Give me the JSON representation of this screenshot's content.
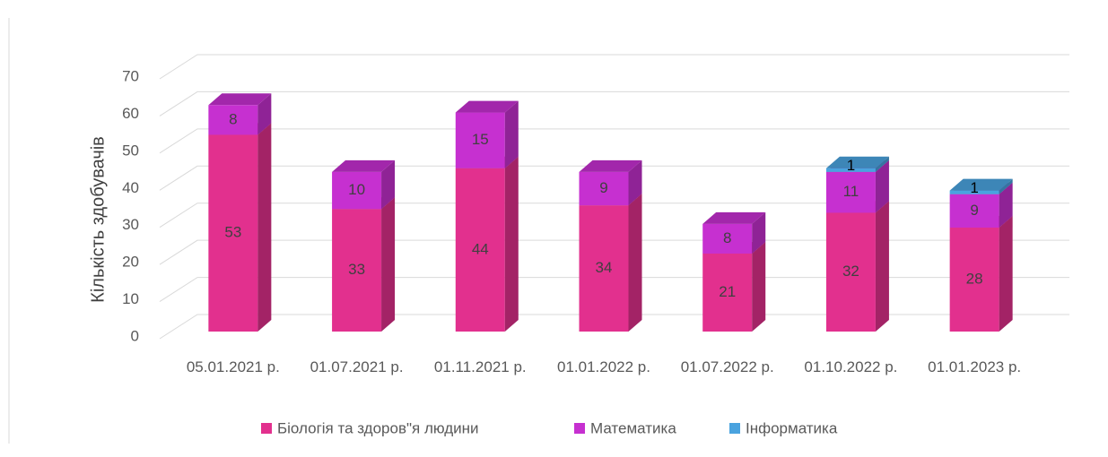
{
  "chart_data": {
    "type": "bar3d_stacked",
    "y_label": "Кількість здобувачів",
    "categories": [
      "05.01.2021 р.",
      "01.07.2021 р.",
      "01.11.2021 р.",
      "01.01.2022 р.",
      "01.07.2022 р.",
      "01.10.2022 р.",
      "01.01.2023 р."
    ],
    "series": [
      {
        "name": "Біологія та здоров\"я людини",
        "color": "#e2308e",
        "values": [
          53,
          33,
          44,
          34,
          21,
          32,
          28
        ]
      },
      {
        "name": "Математика",
        "color": "#c630d0",
        "values": [
          8,
          10,
          15,
          9,
          8,
          11,
          9
        ]
      },
      {
        "name": "Інформатика",
        "color": "#4aa3df",
        "values": [
          null,
          null,
          null,
          null,
          null,
          1,
          1
        ]
      }
    ],
    "ylim": [
      0,
      70
    ],
    "yticks": [
      0,
      10,
      20,
      30,
      40,
      50,
      60,
      70
    ],
    "grid": true,
    "legend": "bottom"
  }
}
